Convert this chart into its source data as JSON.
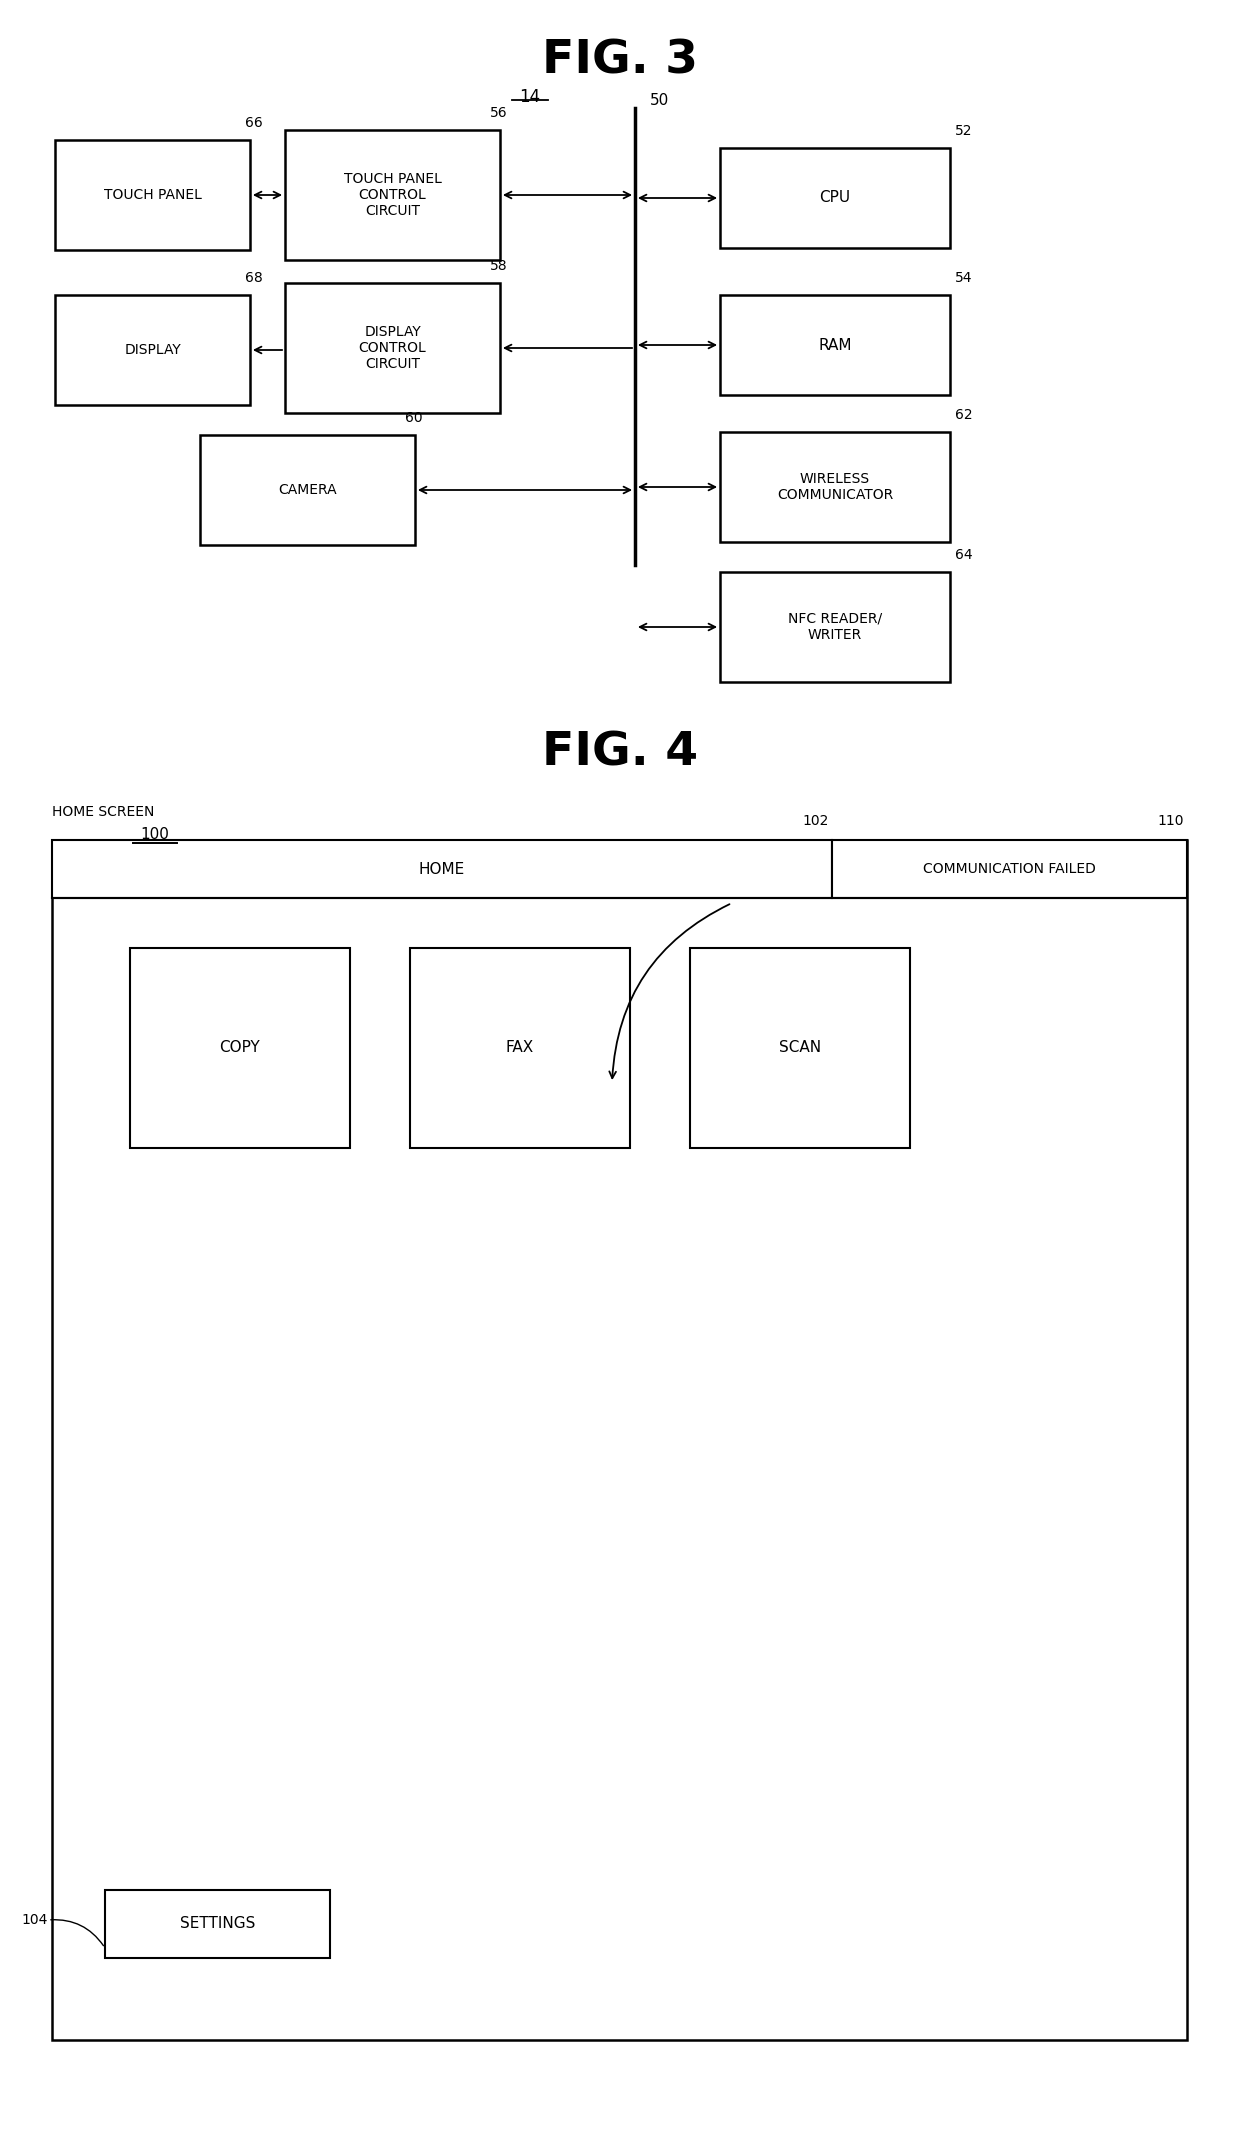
{
  "fig_width": 12.4,
  "fig_height": 21.34,
  "bg_color": "#ffffff",
  "fig3": {
    "title": "FIG. 3",
    "title_fontsize": 30,
    "label_14": "14",
    "label_50": "50",
    "blocks": [
      {
        "label": "TOUCH PANEL",
        "col": "left",
        "row": 0,
        "dashed": false
      },
      {
        "label": "TOUCH PANEL\nCONTROL\nCIRCUIT",
        "col": "mid",
        "row": 0,
        "dashed": false
      },
      {
        "label": "CPU",
        "col": "right",
        "row": 0,
        "dashed": false
      },
      {
        "label": "DISPLAY",
        "col": "left",
        "row": 1,
        "dashed": false
      },
      {
        "label": "DISPLAY\nCONTROL\nCIRCUIT",
        "col": "mid",
        "row": 1,
        "dashed": false
      },
      {
        "label": "RAM",
        "col": "right",
        "row": 1,
        "dashed": false
      },
      {
        "label": "CAMERA",
        "col": "mid",
        "row": 2,
        "dashed": false
      },
      {
        "label": "WIRELESS\nCOMMUNICATOR",
        "col": "right",
        "row": 2,
        "dashed": false
      },
      {
        "label": "NFC READER/\nWRITER",
        "col": "right",
        "row": 3,
        "dashed": false
      }
    ]
  },
  "fig4": {
    "title": "FIG. 4",
    "title_fontsize": 30,
    "app_labels": [
      "COPY",
      "FAX",
      "SCAN"
    ]
  }
}
